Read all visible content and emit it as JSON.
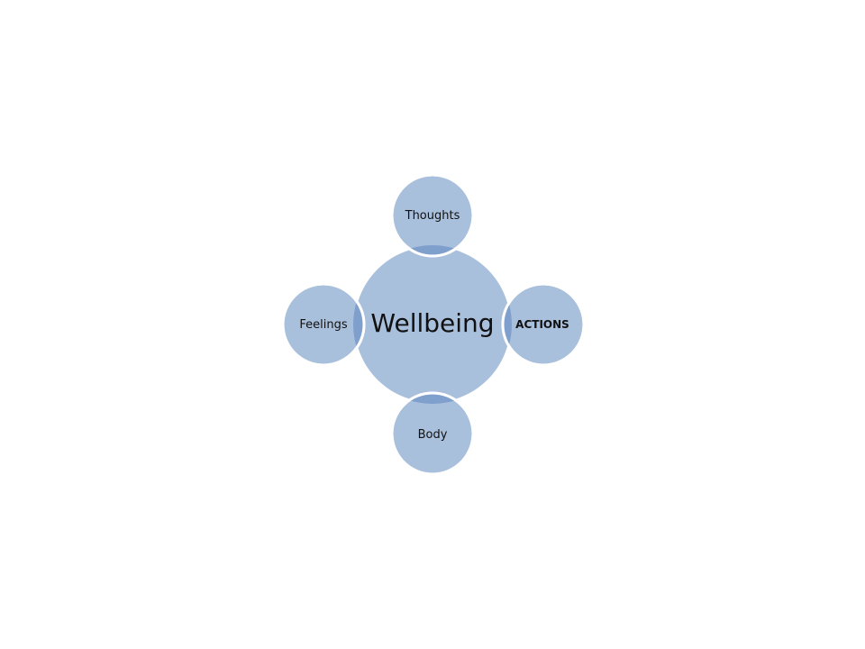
{
  "diagram": {
    "center": {
      "label": "Wellbeing"
    },
    "nodes": [
      {
        "id": "top",
        "label": "Thoughts",
        "emphasis": false
      },
      {
        "id": "right",
        "label": "ACTIONS",
        "emphasis": true
      },
      {
        "id": "bottom",
        "label": "Body",
        "emphasis": false
      },
      {
        "id": "left",
        "label": "Feelings",
        "emphasis": false
      }
    ]
  },
  "colors": {
    "circle_fill": "#a9c0dd",
    "overlap_fill": "#7f9fcc",
    "circle_stroke": "#ffffff",
    "text": "#111111"
  }
}
